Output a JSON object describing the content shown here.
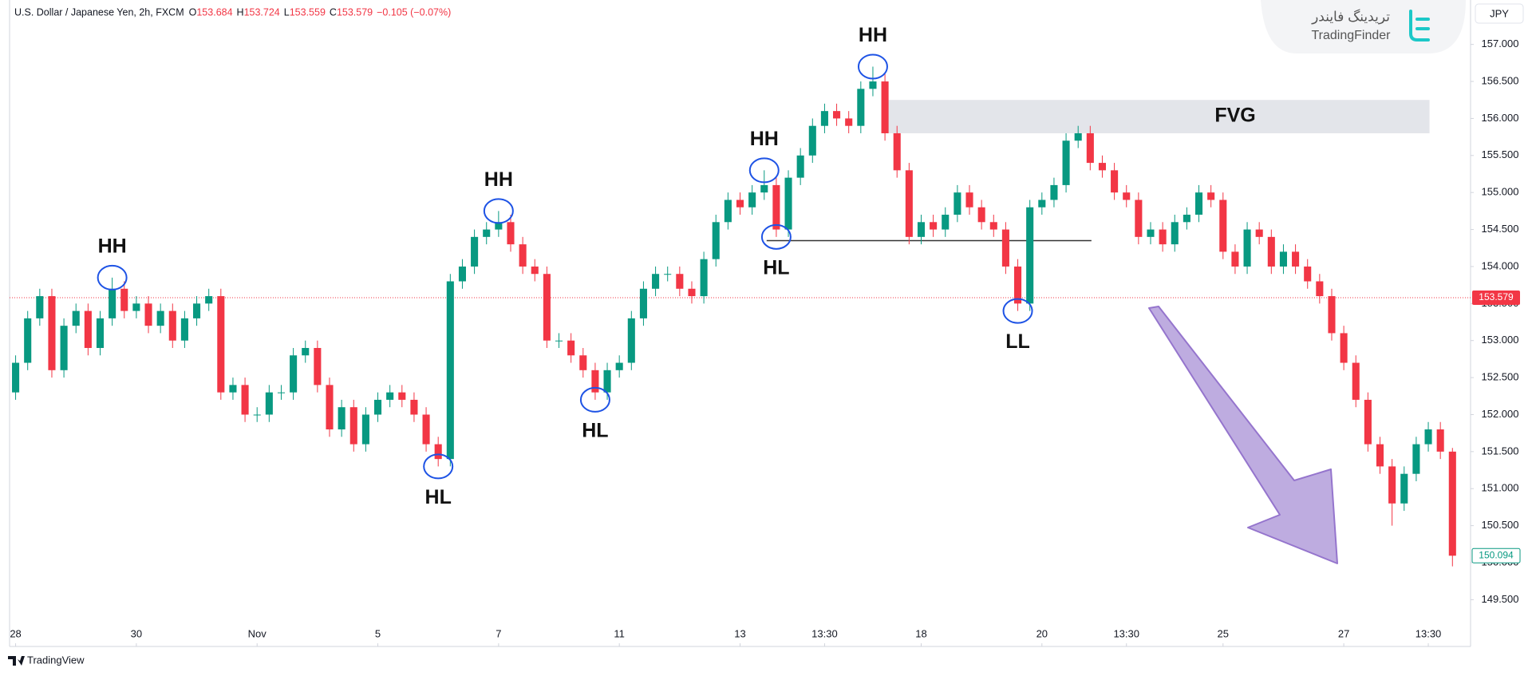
{
  "chart_data": {
    "type": "candlestick",
    "symbol": "U.S. Dollar / Japanese Yen, 2h, FXCM",
    "legend_ohlc": [
      {
        "label": "O",
        "value": 153.684
      },
      {
        "label": "H",
        "value": 153.724
      },
      {
        "label": "L",
        "value": 153.559
      },
      {
        "label": "C",
        "value": 153.579
      }
    ],
    "change": "−0.105 (−0.07%)",
    "currency": "JPY",
    "up_color": "#089981",
    "down_color": "#f23645",
    "grid": false,
    "open": [
      152.3,
      152.7,
      153.3,
      153.6,
      152.6,
      153.2,
      153.4,
      152.9,
      153.3,
      153.7,
      153.4,
      153.5,
      153.2,
      153.4,
      153.0,
      153.3,
      153.5,
      153.6,
      152.3,
      152.4,
      152.0,
      152.0,
      152.3,
      152.3,
      152.8,
      152.9,
      152.4,
      151.8,
      152.1,
      151.6,
      152.0,
      152.2,
      152.3,
      152.2,
      152.0,
      151.6,
      151.4,
      153.8,
      154.0,
      154.4,
      154.5,
      154.6,
      154.3,
      154.0,
      153.9,
      153.0,
      153.0,
      152.8,
      152.6,
      152.3,
      152.6,
      152.7,
      153.3,
      153.7,
      153.9,
      153.9,
      153.7,
      153.6,
      154.1,
      154.6,
      154.9,
      154.8,
      155.0,
      155.1,
      154.5,
      155.2,
      155.5,
      155.9,
      156.1,
      156.0,
      155.9,
      156.4,
      156.5,
      155.8,
      155.3,
      154.4,
      154.6,
      154.5,
      154.7,
      155.0,
      154.8,
      154.6,
      154.5,
      154.0,
      153.5,
      154.8,
      154.9,
      155.1,
      155.7,
      155.8,
      155.4,
      155.3,
      155.0,
      154.9,
      154.4,
      154.5,
      154.3,
      154.6,
      154.7,
      155.0,
      154.9,
      154.2,
      154.0,
      154.5,
      154.4,
      154.0,
      154.2,
      154.0,
      153.8,
      153.6,
      153.1,
      152.7,
      152.2,
      151.6,
      151.3,
      150.8,
      151.2,
      151.6,
      151.8,
      151.5
    ],
    "high": [
      152.8,
      153.4,
      153.7,
      153.7,
      153.3,
      153.5,
      153.5,
      153.4,
      153.85,
      153.8,
      153.6,
      153.6,
      153.5,
      153.5,
      153.4,
      153.6,
      153.7,
      153.7,
      152.5,
      152.5,
      152.1,
      152.4,
      152.4,
      152.9,
      153.0,
      153.0,
      152.5,
      152.2,
      152.2,
      152.1,
      152.3,
      152.4,
      152.4,
      152.3,
      152.1,
      151.7,
      153.9,
      154.1,
      154.5,
      154.6,
      154.75,
      154.7,
      154.4,
      154.1,
      154.0,
      153.1,
      153.1,
      152.9,
      152.7,
      152.7,
      152.8,
      153.4,
      153.8,
      154.0,
      154.0,
      154.0,
      153.8,
      154.2,
      154.7,
      155.0,
      155.0,
      155.1,
      155.3,
      155.2,
      155.3,
      155.6,
      156.0,
      156.2,
      156.2,
      156.1,
      156.5,
      156.7,
      156.6,
      155.9,
      155.4,
      154.7,
      154.7,
      154.8,
      155.1,
      155.1,
      154.9,
      154.7,
      154.6,
      154.1,
      154.9,
      155.0,
      155.2,
      155.8,
      155.9,
      155.9,
      155.5,
      155.4,
      155.1,
      155.0,
      154.6,
      154.6,
      154.7,
      154.8,
      155.1,
      155.1,
      155.0,
      154.3,
      154.6,
      154.6,
      154.5,
      154.3,
      154.3,
      154.1,
      153.9,
      153.7,
      153.2,
      152.8,
      152.3,
      151.7,
      151.4,
      151.3,
      151.7,
      151.9,
      151.9,
      151.55
    ],
    "low": [
      152.2,
      152.6,
      153.2,
      152.5,
      152.5,
      153.1,
      152.8,
      152.8,
      153.2,
      153.3,
      153.3,
      153.1,
      153.1,
      152.9,
      152.9,
      153.2,
      153.4,
      152.2,
      152.2,
      151.9,
      151.9,
      151.9,
      152.2,
      152.2,
      152.7,
      152.3,
      151.7,
      151.7,
      151.5,
      151.5,
      151.9,
      152.1,
      152.1,
      151.9,
      151.5,
      151.3,
      151.3,
      153.7,
      153.9,
      154.3,
      154.4,
      154.2,
      153.9,
      153.8,
      152.9,
      152.9,
      152.7,
      152.5,
      152.2,
      152.2,
      152.5,
      152.6,
      153.2,
      153.6,
      153.8,
      153.6,
      153.5,
      153.5,
      154.0,
      154.5,
      154.7,
      154.7,
      154.9,
      154.4,
      154.4,
      155.1,
      155.4,
      155.8,
      155.9,
      155.8,
      155.8,
      156.3,
      155.7,
      155.2,
      154.3,
      154.3,
      154.4,
      154.4,
      154.6,
      154.7,
      154.5,
      154.4,
      153.9,
      153.4,
      153.4,
      154.7,
      154.8,
      155.0,
      155.6,
      155.3,
      155.2,
      154.9,
      154.8,
      154.3,
      154.3,
      154.2,
      154.2,
      154.5,
      154.6,
      154.8,
      154.1,
      153.9,
      153.9,
      154.3,
      153.9,
      153.9,
      153.9,
      153.7,
      153.5,
      153.0,
      152.6,
      152.1,
      151.5,
      151.2,
      150.5,
      150.7,
      151.1,
      151.5,
      151.4,
      149.95
    ],
    "close": [
      152.7,
      153.3,
      153.6,
      152.6,
      153.2,
      153.4,
      152.9,
      153.3,
      153.7,
      153.4,
      153.5,
      153.2,
      153.4,
      153.0,
      153.3,
      153.5,
      153.6,
      152.3,
      152.4,
      152.0,
      152.0,
      152.3,
      152.3,
      152.8,
      152.9,
      152.4,
      151.8,
      152.1,
      151.6,
      152.0,
      152.2,
      152.3,
      152.2,
      152.0,
      151.6,
      151.4,
      153.8,
      154.0,
      154.4,
      154.5,
      154.6,
      154.3,
      154.0,
      153.9,
      153.0,
      153.0,
      152.8,
      152.6,
      152.3,
      152.6,
      152.7,
      153.3,
      153.7,
      153.9,
      153.9,
      153.7,
      153.6,
      154.1,
      154.6,
      154.9,
      154.8,
      155.0,
      155.1,
      154.5,
      155.2,
      155.5,
      155.9,
      156.1,
      156.0,
      155.9,
      156.4,
      156.5,
      155.8,
      155.3,
      154.4,
      154.6,
      154.5,
      154.7,
      155.0,
      154.8,
      154.6,
      154.5,
      154.0,
      153.5,
      154.8,
      154.9,
      155.1,
      155.7,
      155.8,
      155.4,
      155.3,
      155.0,
      154.9,
      154.4,
      154.5,
      154.3,
      154.6,
      154.7,
      155.0,
      154.9,
      154.2,
      154.0,
      154.5,
      154.4,
      154.0,
      154.2,
      154.0,
      153.8,
      153.6,
      153.1,
      152.7,
      152.2,
      151.6,
      151.3,
      150.8,
      151.2,
      151.6,
      151.8,
      151.5,
      150.094
    ],
    "xlim": [
      -0.5,
      120.5
    ],
    "xticks": [
      {
        "value": 0,
        "label": "28"
      },
      {
        "value": 10,
        "label": "30"
      },
      {
        "value": 20,
        "label": "Nov"
      },
      {
        "value": 30,
        "label": "5"
      },
      {
        "value": 40,
        "label": "7"
      },
      {
        "value": 50,
        "label": "11"
      },
      {
        "value": 60,
        "label": "13"
      },
      {
        "value": 67,
        "label": "13:30"
      },
      {
        "value": 75,
        "label": "18"
      },
      {
        "value": 85,
        "label": "20"
      },
      {
        "value": 92,
        "label": "13:30"
      },
      {
        "value": 100,
        "label": "25"
      },
      {
        "value": 110,
        "label": "27"
      },
      {
        "value": 117,
        "label": "13:30"
      }
    ],
    "ylim": [
      149.17,
      157.6
    ],
    "yticks": [
      {
        "value": 149.5,
        "label": "149.500"
      },
      {
        "value": 150,
        "label": "150.000"
      },
      {
        "value": 150.5,
        "label": "150.500"
      },
      {
        "value": 151,
        "label": "151.000"
      },
      {
        "value": 151.5,
        "label": "151.500"
      },
      {
        "value": 152,
        "label": "152.000"
      },
      {
        "value": 152.5,
        "label": "152.500"
      },
      {
        "value": 153,
        "label": "153.000"
      },
      {
        "value": 153.5,
        "label": "153.500"
      },
      {
        "value": 154,
        "label": "154.000"
      },
      {
        "value": 154.5,
        "label": "154.500"
      },
      {
        "value": 155,
        "label": "155.000"
      },
      {
        "value": 155.5,
        "label": "155.500"
      },
      {
        "value": 156,
        "label": "156.000"
      },
      {
        "value": 156.5,
        "label": "156.500"
      },
      {
        "value": 157,
        "label": "157.000"
      }
    ],
    "price_line": 153.579,
    "last_price": 150.094,
    "annotations": [
      {
        "label": "HH",
        "x": 8
      },
      {
        "label": "HL",
        "x": 35
      },
      {
        "label": "HH",
        "x": 40
      },
      {
        "label": "HL",
        "x": 48
      },
      {
        "label": "HH",
        "x": 62
      },
      {
        "label": "HL",
        "x": 63
      },
      {
        "label": "HH",
        "x": 71
      },
      {
        "label": "LL",
        "x": 83
      }
    ],
    "fvg": {
      "label": "FVG",
      "xlim": [
        71.7,
        117.1
      ],
      "ylim": [
        155.8,
        156.25
      ]
    },
    "level": {
      "value": 154.35,
      "xlim": [
        62.2,
        89.1
      ]
    }
  },
  "branding": {
    "logo_fa": "تریدینگ فایندر",
    "logo_en": "TradingFinder",
    "footer": "TradingView"
  }
}
